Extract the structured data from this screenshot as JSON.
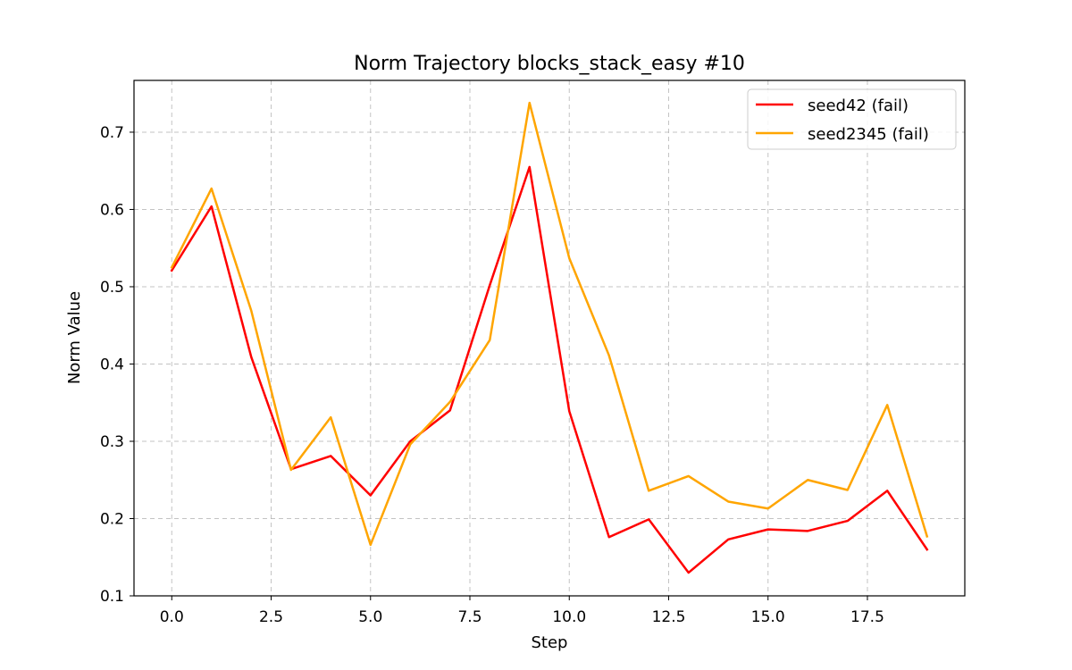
{
  "chart_data": {
    "type": "line",
    "title": "Norm Trajectory blocks_stack_easy #10",
    "xlabel": "Step",
    "ylabel": "Norm Value",
    "xlim": [
      -0.95,
      19.95
    ],
    "ylim": [
      0.1,
      0.767
    ],
    "xticks": [
      0.0,
      2.5,
      5.0,
      7.5,
      10.0,
      12.5,
      15.0,
      17.5
    ],
    "xtick_labels": [
      "0.0",
      "2.5",
      "5.0",
      "7.5",
      "10.0",
      "12.5",
      "15.0",
      "17.5"
    ],
    "yticks": [
      0.1,
      0.2,
      0.3,
      0.4,
      0.5,
      0.6,
      0.7
    ],
    "ytick_labels": [
      "0.1",
      "0.2",
      "0.3",
      "0.4",
      "0.5",
      "0.6",
      "0.7"
    ],
    "grid": true,
    "legend_position": "top-right",
    "x": [
      0,
      1,
      2,
      3,
      4,
      5,
      6,
      7,
      8,
      9,
      10,
      11,
      12,
      13,
      14,
      15,
      16,
      17,
      18,
      19
    ],
    "series": [
      {
        "name": "seed42 (fail)",
        "color": "#ff0000",
        "values": [
          0.521,
          0.604,
          0.409,
          0.264,
          0.281,
          0.23,
          0.3,
          0.34,
          0.502,
          0.655,
          0.339,
          0.176,
          0.199,
          0.13,
          0.173,
          0.186,
          0.184,
          0.197,
          0.236,
          0.16
        ]
      },
      {
        "name": "seed2345 (fail)",
        "color": "#ffa500",
        "values": [
          0.525,
          0.627,
          0.469,
          0.263,
          0.331,
          0.166,
          0.296,
          0.351,
          0.431,
          0.738,
          0.537,
          0.411,
          0.236,
          0.255,
          0.222,
          0.213,
          0.25,
          0.237,
          0.347,
          0.177
        ]
      }
    ]
  }
}
